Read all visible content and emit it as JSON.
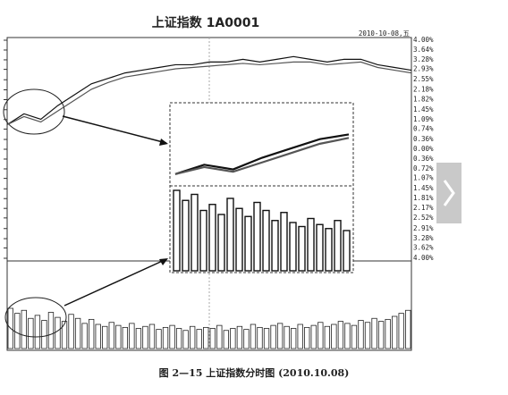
{
  "chart_data": {
    "type": "line",
    "title": "上证指数 1A0001",
    "date": "2010-10-08,五",
    "caption": "图 2—15 上证指数分时图 (2010.10.08)",
    "ylim": [
      -4,
      4
    ],
    "yticks": [
      {
        "value": 4,
        "label": "4.00%"
      },
      {
        "value": 3.64,
        "label": "3.64%"
      },
      {
        "value": 3.28,
        "label": "3.28%"
      },
      {
        "value": 2.93,
        "label": "2.93%"
      },
      {
        "value": 2.55,
        "label": "2.55%"
      },
      {
        "value": 2.18,
        "label": "2.18%"
      },
      {
        "value": 1.82,
        "label": "1.82%"
      },
      {
        "value": 1.45,
        "label": "1.45%"
      },
      {
        "value": 1.09,
        "label": "1.09%"
      },
      {
        "value": 0.74,
        "label": "0.74%"
      },
      {
        "value": 0.36,
        "label": "0.36%"
      },
      {
        "value": 0,
        "label": "0.00%"
      },
      {
        "value": -0.36,
        "label": "0.36%"
      },
      {
        "value": -0.72,
        "label": "0.72%"
      },
      {
        "value": -1.07,
        "label": "1.07%"
      },
      {
        "value": -1.45,
        "label": "1.45%"
      },
      {
        "value": -1.81,
        "label": "1.81%"
      },
      {
        "value": -2.17,
        "label": "2.17%"
      },
      {
        "value": -2.52,
        "label": "2.52%"
      },
      {
        "value": -2.91,
        "label": "2.91%"
      },
      {
        "value": -3.28,
        "label": "3.28%"
      },
      {
        "value": -3.62,
        "label": "3.62%"
      },
      {
        "value": -4,
        "label": "4.00%"
      }
    ],
    "series": [
      {
        "color": "#111",
        "values": [
          0.9,
          1.3,
          1.1,
          1.6,
          2.0,
          2.4,
          2.6,
          2.8,
          2.9,
          3.0,
          3.1,
          3.1,
          3.2,
          3.2,
          3.3,
          3.2,
          3.3,
          3.4,
          3.3,
          3.2,
          3.3,
          3.3,
          3.1,
          3.0,
          2.9
        ]
      },
      {
        "color": "#555",
        "values": [
          0.9,
          1.2,
          1.0,
          1.4,
          1.8,
          2.2,
          2.45,
          2.65,
          2.75,
          2.85,
          2.95,
          3.0,
          3.05,
          3.1,
          3.15,
          3.1,
          3.15,
          3.2,
          3.2,
          3.1,
          3.15,
          3.2,
          3.0,
          2.9,
          2.8
        ]
      }
    ],
    "volume": [
      40,
      35,
      38,
      30,
      33,
      28,
      36,
      31,
      27,
      34,
      30,
      25,
      29,
      24,
      22,
      26,
      23,
      21,
      25,
      20,
      22,
      24,
      19,
      21,
      23,
      20,
      18,
      22,
      19,
      21,
      20,
      23,
      18,
      20,
      22,
      19,
      24,
      21,
      20,
      23,
      25,
      22,
      20,
      24,
      21,
      23,
      26,
      22,
      24,
      27,
      25,
      23,
      28,
      26,
      30,
      27,
      29,
      32,
      35,
      38
    ]
  }
}
